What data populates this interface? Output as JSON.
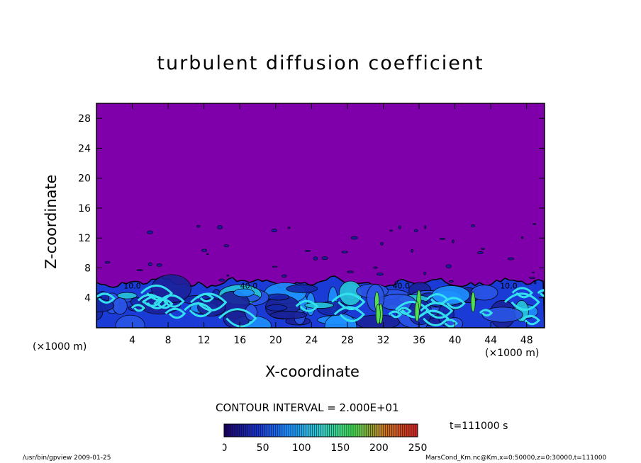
{
  "chart_data": {
    "type": "heatmap",
    "title": "turbulent diffusion coefficient",
    "xlabel": "X-coordinate",
    "ylabel": "Z-coordinate",
    "x_unit_label": "(×1000 m)",
    "xlim": [
      0,
      50
    ],
    "ylim": [
      0,
      30
    ],
    "x_ticks": [
      4,
      8,
      12,
      16,
      20,
      24,
      28,
      32,
      36,
      40,
      44,
      48
    ],
    "y_ticks": [
      4,
      8,
      12,
      16,
      20,
      24,
      28
    ],
    "contour_interval_text": "CONTOUR INTERVAL = 2.000E+01",
    "colorbar": {
      "min": 0,
      "max": 250,
      "ticks": [
        0,
        50,
        100,
        150,
        200,
        250
      ],
      "colors": [
        "#1a0066",
        "#1a33cc",
        "#1e90ff",
        "#33cccc",
        "#44dd55",
        "#cc7722",
        "#cc2222"
      ]
    },
    "background_color": "#7f00aa",
    "mixed_layer_top": 6,
    "contour_labels": [
      "10.0",
      "40.0",
      "40.0",
      "10.0"
    ],
    "time_label": "t=111000 s"
  },
  "footer": {
    "left": "/usr/bin/gpview   2009-01-25",
    "right": "MarsCond_Km.nc@Km,x=0:50000,z=0:30000,t=111000"
  }
}
